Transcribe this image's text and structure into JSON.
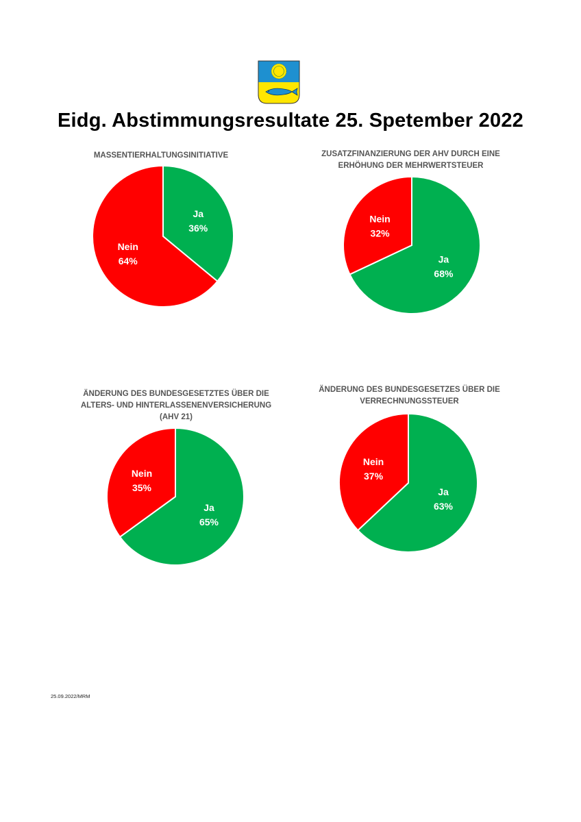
{
  "header": {
    "title": "Eidg. Abstimmungsresultate 25. Spetember 2022"
  },
  "footer": {
    "date_code": "25.09.2022/MRM"
  },
  "colors": {
    "ja": "#00b050",
    "nein": "#ff0000",
    "emblem_blue": "#1e90d0",
    "emblem_yellow": "#ffe600"
  },
  "chart_data": [
    {
      "type": "pie",
      "title": "MASSENTIERHALTUNGSINITIATIVE",
      "slices": [
        {
          "label": "Ja",
          "value": 36,
          "value_label": "36%"
        },
        {
          "label": "Nein",
          "value": 64,
          "value_label": "64%"
        }
      ]
    },
    {
      "type": "pie",
      "title": "ZUSATZFINANZIERUNG DER AHV DURCH EINE ERHÖHUNG DER MEHRWERTSTEUER",
      "slices": [
        {
          "label": "Ja",
          "value": 68,
          "value_label": "68%"
        },
        {
          "label": "Nein",
          "value": 32,
          "value_label": "32%"
        }
      ]
    },
    {
      "type": "pie",
      "title": "ÄNDERUNG DES BUNDESGESETZTES ÜBER DIE ALTERS- UND HINTERLASSENENVERSICHERUNG (AHV 21)",
      "slices": [
        {
          "label": "Ja",
          "value": 65,
          "value_label": "65%"
        },
        {
          "label": "Nein",
          "value": 35,
          "value_label": "35%"
        }
      ]
    },
    {
      "type": "pie",
      "title": "ÄNDERUNG DES BUNDESGESETZES ÜBER DIE VERRECHNUNGSSTEUER",
      "slices": [
        {
          "label": "Ja",
          "value": 63,
          "value_label": "63%"
        },
        {
          "label": "Nein",
          "value": 37,
          "value_label": "37%"
        }
      ]
    }
  ]
}
